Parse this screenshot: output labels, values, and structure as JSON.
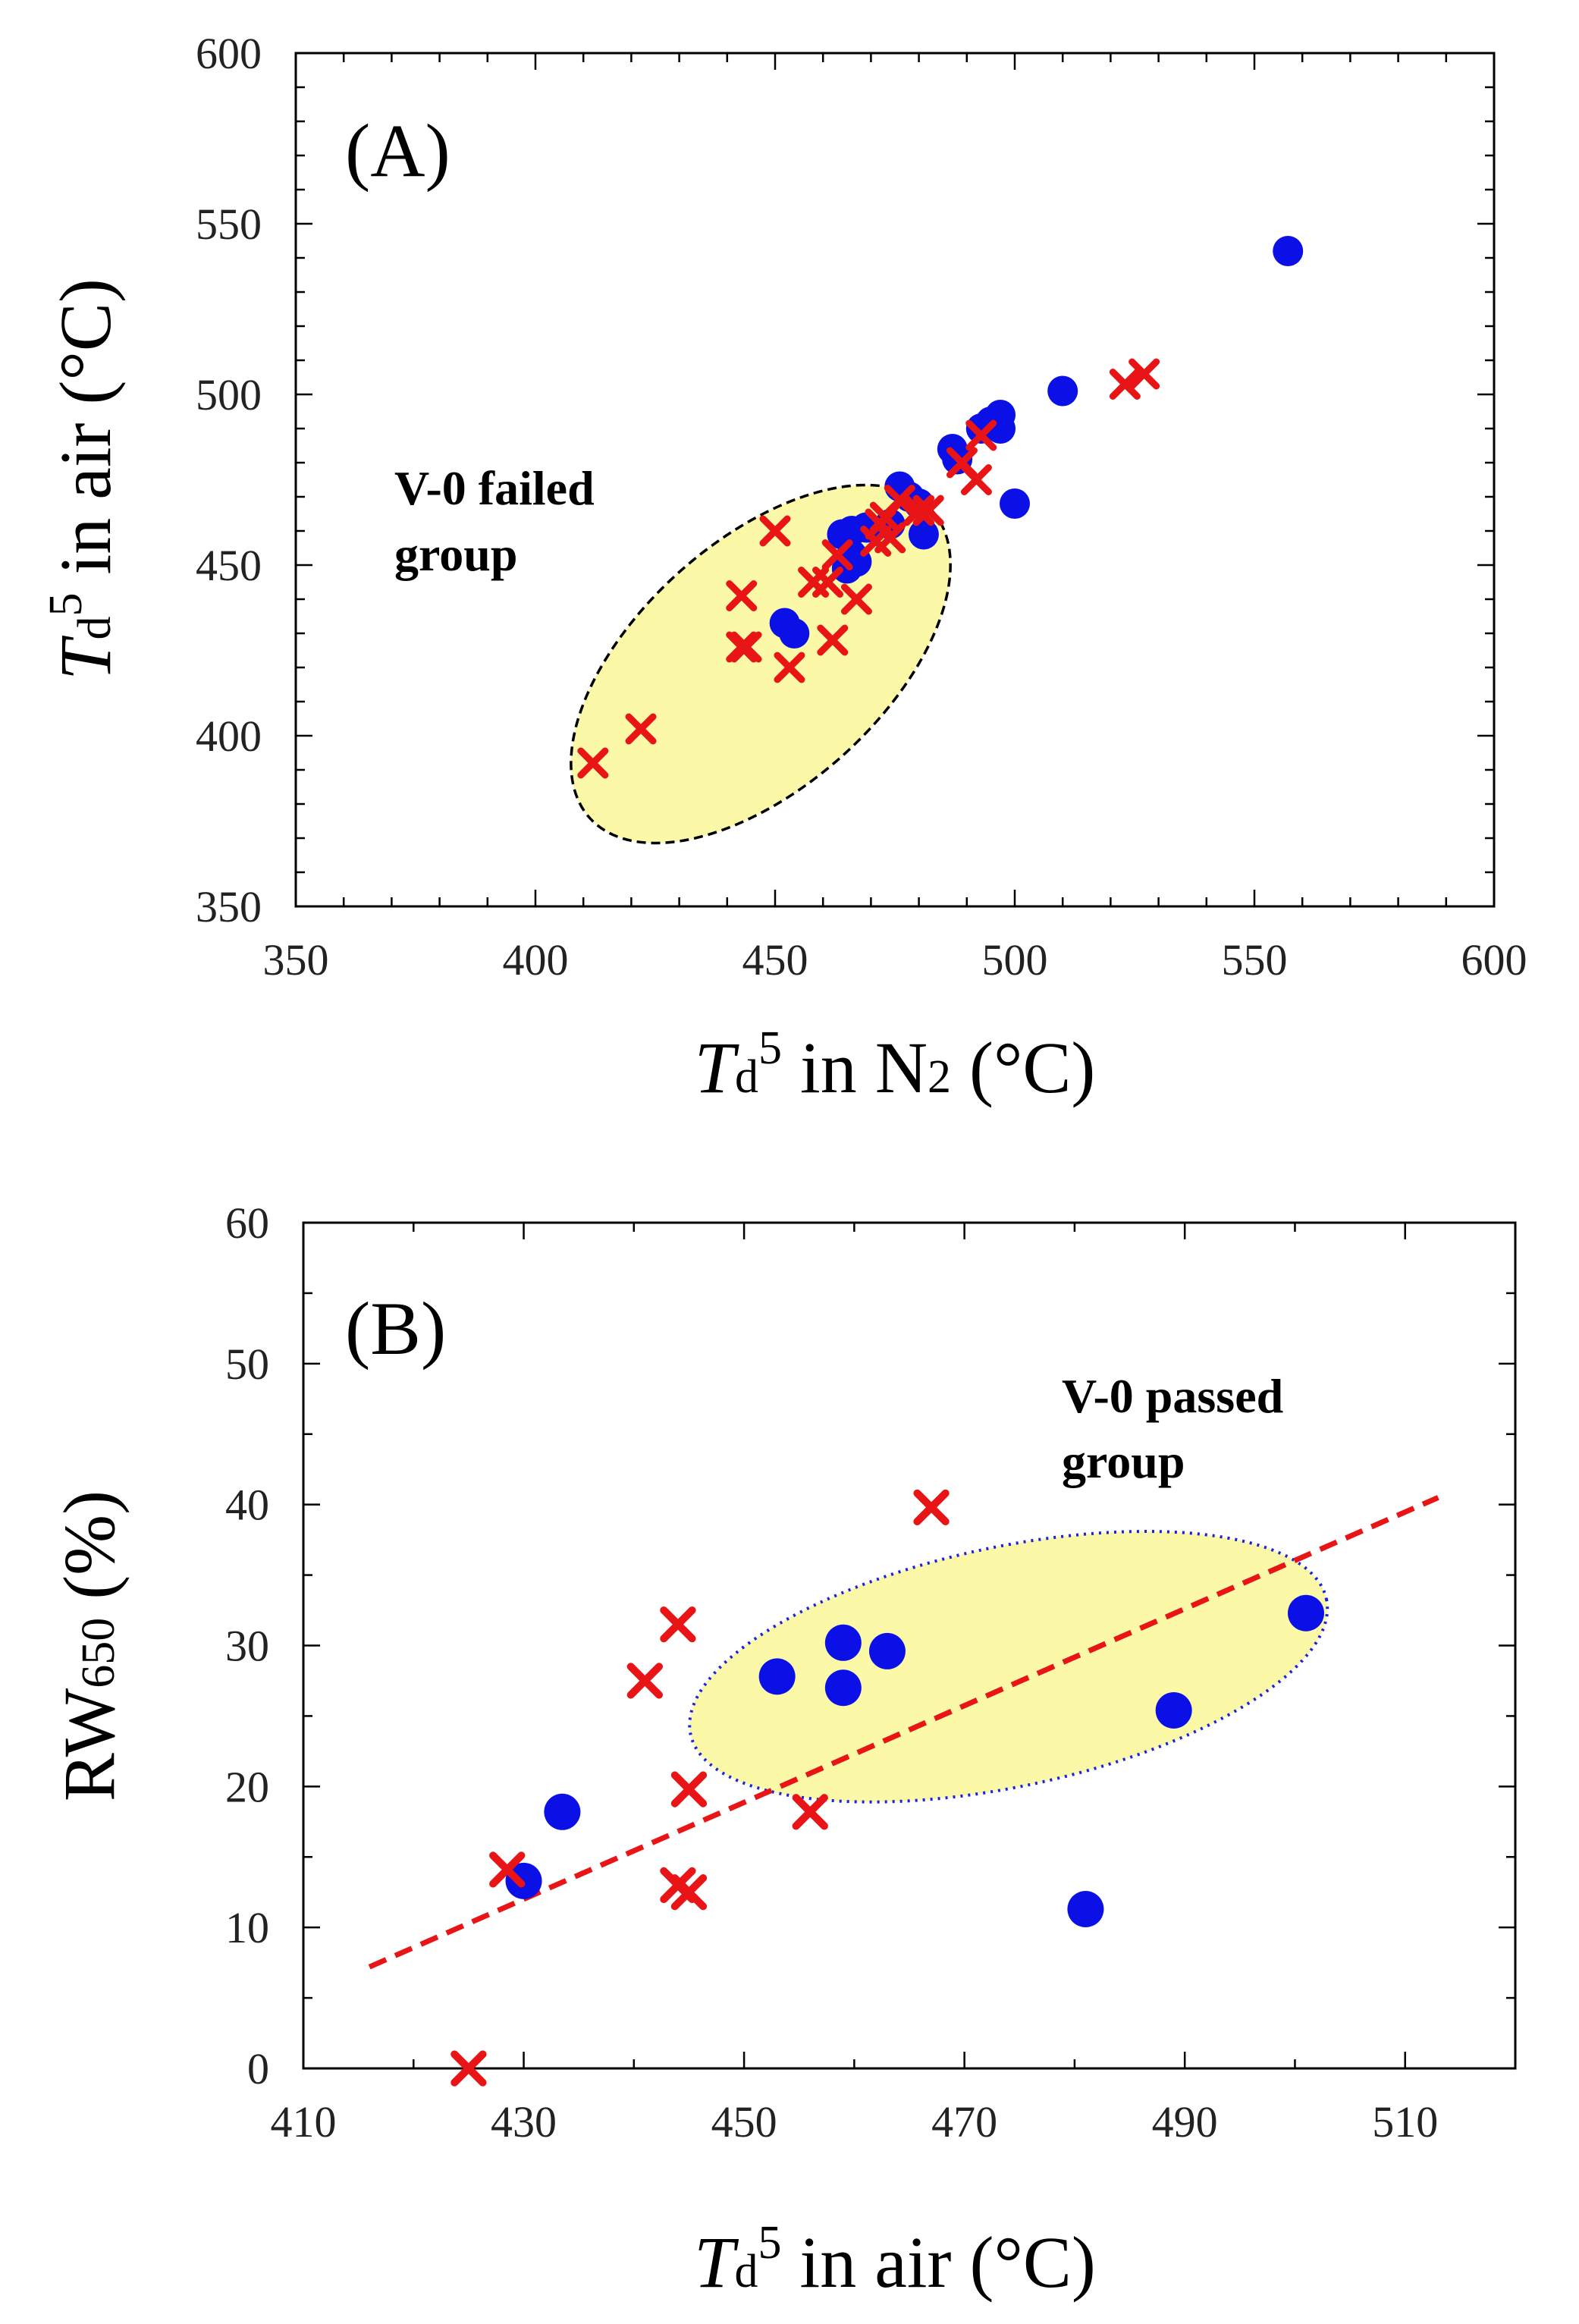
{
  "chart_data": [
    {
      "panel_label": "(A)",
      "type": "scatter",
      "xlabel_parts": [
        "T",
        "d",
        "5",
        " in N",
        "2",
        " (°C)"
      ],
      "ylabel_parts": [
        "T",
        "d",
        "5",
        " in air (°C)"
      ],
      "xlim": [
        350,
        600
      ],
      "ylim": [
        350,
        600
      ],
      "xticks": [
        "350",
        "400",
        "450",
        "500",
        "550",
        "600"
      ],
      "yticks": [
        "350",
        "400",
        "450",
        "500",
        "550",
        "600"
      ],
      "annotation_lines": [
        "V-0 failed",
        "group"
      ],
      "region": {
        "shape": "ellipse",
        "cx": 447,
        "cy": 421,
        "rx": 48,
        "ry": 36,
        "rotation_deg": -42,
        "fill": "#fbf8a8",
        "stroke": "#000000",
        "style": "dashed"
      },
      "series": [
        {
          "name": "V-0 passed",
          "marker": "circle",
          "color": "#0a10e6",
          "points": [
            [
              557,
              542
            ],
            [
              510,
              501
            ],
            [
              500,
              468
            ],
            [
              497,
              494
            ],
            [
              497,
              490
            ],
            [
              495,
              492
            ],
            [
              493,
              490
            ],
            [
              487,
              484
            ],
            [
              488,
              481
            ],
            [
              481,
              459
            ],
            [
              480,
              468
            ],
            [
              478,
              470
            ],
            [
              476,
              473
            ],
            [
              474,
              462
            ],
            [
              469,
              461
            ],
            [
              466,
              460
            ],
            [
              464,
              459
            ],
            [
              467,
              451
            ],
            [
              465,
              449
            ],
            [
              466,
              453
            ],
            [
              452,
              433
            ],
            [
              454,
              430
            ]
          ]
        },
        {
          "name": "V-0 failed",
          "marker": "x",
          "color": "#e81416",
          "points": [
            [
              412,
              392
            ],
            [
              422,
              402
            ],
            [
              443,
              426
            ],
            [
              444,
              426
            ],
            [
              443,
              441
            ],
            [
              450,
              460
            ],
            [
              453,
              420
            ],
            [
              458,
              445
            ],
            [
              461,
              445
            ],
            [
              462,
              428
            ],
            [
              463,
              453
            ],
            [
              467,
              440
            ],
            [
              471,
              457
            ],
            [
              472,
              462
            ],
            [
              474,
              458
            ],
            [
              476,
              469
            ],
            [
              473,
              464
            ],
            [
              480,
              466
            ],
            [
              482,
              466
            ],
            [
              489,
              480
            ],
            [
              492,
              475
            ],
            [
              493,
              488
            ],
            [
              523,
              503
            ],
            [
              527,
              506
            ]
          ]
        }
      ]
    },
    {
      "panel_label": "(B)",
      "type": "scatter",
      "xlabel_parts": [
        "T",
        "d",
        "5",
        " in air (°C)"
      ],
      "ylabel_parts": [
        "RW",
        "650",
        " (%)"
      ],
      "xlim": [
        410,
        520
      ],
      "ylim": [
        0,
        60
      ],
      "xticks": [
        "410",
        "430",
        "450",
        "470",
        "490",
        "510"
      ],
      "xtick_values": [
        410,
        430,
        450,
        470,
        490,
        510
      ],
      "yticks": [
        "0",
        "10",
        "20",
        "30",
        "40",
        "50",
        "60"
      ],
      "annotation_lines": [
        "V-0 passed",
        "group"
      ],
      "region": {
        "shape": "ellipse",
        "cx": 474,
        "cy": 28.5,
        "rx": 29.5,
        "ry": 8.5,
        "rotation_deg": -12,
        "fill": "#fbf8a8",
        "stroke": "#1a22e0",
        "style": "dotted"
      },
      "trendline": {
        "x": [
          416,
          513
        ],
        "y": [
          7.2,
          40.5
        ],
        "color": "#e81416",
        "style": "dashed"
      },
      "series": [
        {
          "name": "V-0 passed",
          "marker": "circle",
          "color": "#0a10e6",
          "points": [
            [
              430,
              13.3
            ],
            [
              433.5,
              18.2
            ],
            [
              453,
              27.8
            ],
            [
              459,
              30.2
            ],
            [
              459,
              27
            ],
            [
              463,
              29.6
            ],
            [
              481,
              11.3
            ],
            [
              489,
              25.4
            ],
            [
              501,
              32.3
            ]
          ]
        },
        {
          "name": "V-0 failed",
          "marker": "x",
          "color": "#e81416",
          "points": [
            [
              425,
              0
            ],
            [
              428.5,
              14.1
            ],
            [
              441,
              27.5
            ],
            [
              444,
              31.5
            ],
            [
              444,
              13
            ],
            [
              445,
              19.8
            ],
            [
              445,
              12.5
            ],
            [
              456,
              18.2
            ],
            [
              467,
              39.8
            ]
          ]
        }
      ]
    }
  ]
}
